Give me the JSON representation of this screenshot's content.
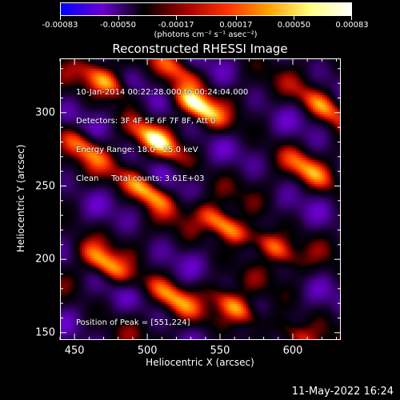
{
  "colorbar": {
    "tick_labels": [
      "-0.00083",
      "-0.00050",
      "-0.00017",
      "0.00017",
      "0.00050",
      "0.00083"
    ],
    "tick_values": [
      -0.00083,
      -0.0005,
      -0.00017,
      0.00017,
      0.0005,
      0.00083
    ],
    "range": [
      -0.00083,
      0.00083
    ],
    "units": "(photons cm⁻² s⁻¹ asec⁻²)",
    "colors": [
      "#0000ff",
      "#6a00d0",
      "#000000",
      "#a00000",
      "#ff3000",
      "#ffa000",
      "#ffff80",
      "#ffffff"
    ]
  },
  "chart_data": {
    "type": "heatmap",
    "title": "Reconstructed RHESSI Image",
    "xlabel": "Heliocentric X (arcsec)",
    "ylabel": "Heliocentric Y (arcsec)",
    "xlim": [
      440,
      633
    ],
    "ylim": [
      145,
      337
    ],
    "x_ticks": [
      450,
      500,
      550,
      600
    ],
    "y_ticks": [
      150,
      200,
      250,
      300
    ],
    "x_tick_labels": [
      "450",
      "500",
      "550",
      "600"
    ],
    "y_tick_labels": [
      "150",
      "200",
      "250",
      "300"
    ],
    "annotations": [
      "10-Jan-2014 00:22:28.000 to 00:24:04.000",
      "Detectors: 3F 4F 5F 6F 7F 8F, Att 0",
      "Energy Range: 18.0 - 25.0 keV",
      "Clean     Total counts: 3.61E+03"
    ],
    "peak_label": "Position of Peak = [551,224]",
    "peak_position": [
      551,
      224
    ],
    "stripe_angle_deg": -35,
    "bright_blobs": [
      {
        "x": 533,
        "y": 306,
        "amp": 1.0
      },
      {
        "x": 505,
        "y": 282,
        "amp": 0.85
      },
      {
        "x": 552,
        "y": 224,
        "amp": 1.0
      },
      {
        "x": 498,
        "y": 248,
        "amp": 0.9
      },
      {
        "x": 470,
        "y": 198,
        "amp": 0.8
      },
      {
        "x": 515,
        "y": 176,
        "amp": 0.7
      },
      {
        "x": 560,
        "y": 168,
        "amp": 0.85
      },
      {
        "x": 585,
        "y": 210,
        "amp": 0.75
      },
      {
        "x": 470,
        "y": 323,
        "amp": 0.75
      },
      {
        "x": 620,
        "y": 305,
        "amp": 0.7
      },
      {
        "x": 610,
        "y": 262,
        "amp": 0.6
      },
      {
        "x": 455,
        "y": 278,
        "amp": 0.65
      },
      {
        "x": 520,
        "y": 330,
        "amp": 0.6
      },
      {
        "x": 600,
        "y": 150,
        "amp": 0.55
      }
    ]
  },
  "footer": {
    "date_stamp": "11-May-2022 16:24"
  }
}
